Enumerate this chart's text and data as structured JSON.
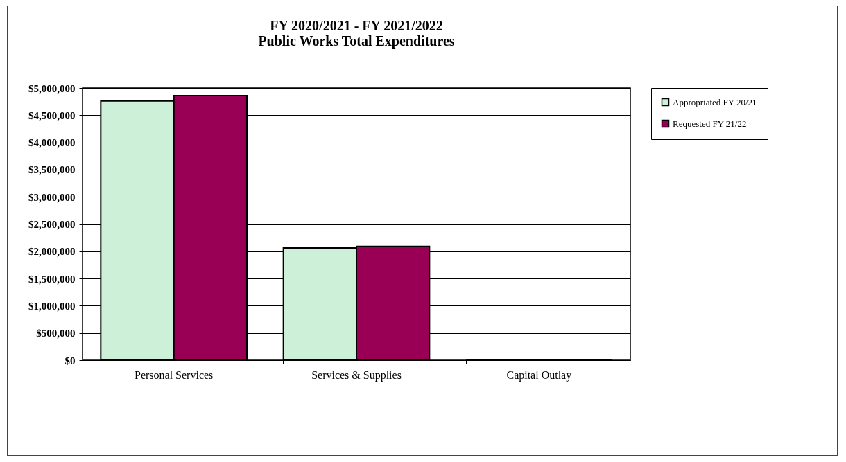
{
  "chart_data": {
    "type": "bar",
    "title": [
      "FY 2020/2021 - FY 2021/2022",
      "Public Works Total Expenditures"
    ],
    "categories": [
      "Personal Services",
      "Services & Supplies",
      "Capital Outlay"
    ],
    "series": [
      {
        "name": "Appropriated FY 20/21",
        "color": "#ccf0d8",
        "values": [
          4760000,
          2060000,
          0
        ]
      },
      {
        "name": "Requested FY 21/22",
        "color": "#990055",
        "values": [
          4860000,
          2090000,
          0
        ]
      }
    ],
    "ylim": [
      0,
      5000000
    ],
    "yticks": [
      {
        "value": 0,
        "label": "$0"
      },
      {
        "value": 500000,
        "label": "$500,000"
      },
      {
        "value": 1000000,
        "label": "$1,000,000"
      },
      {
        "value": 1500000,
        "label": "$1,500,000"
      },
      {
        "value": 2000000,
        "label": "$2,000,000"
      },
      {
        "value": 2500000,
        "label": "$2,500,000"
      },
      {
        "value": 3000000,
        "label": "$3,000,000"
      },
      {
        "value": 3500000,
        "label": "$3,500,000"
      },
      {
        "value": 4000000,
        "label": "$4,000,000"
      },
      {
        "value": 4500000,
        "label": "$4,500,000"
      },
      {
        "value": 5000000,
        "label": "$5,000,000"
      }
    ],
    "grid": "y",
    "legend": "right"
  }
}
